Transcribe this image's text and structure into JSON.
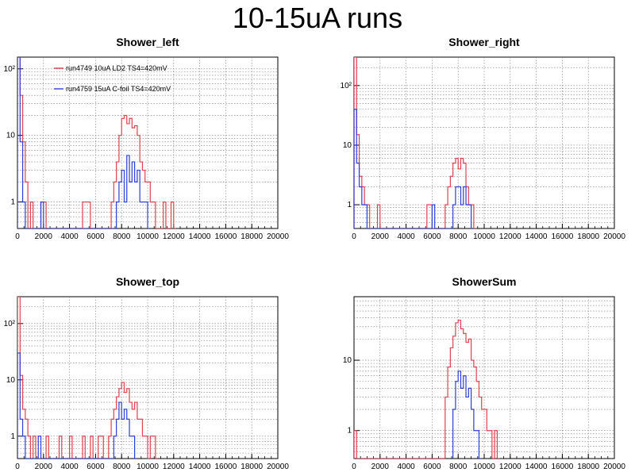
{
  "slide": {
    "title": "10-15uA runs"
  },
  "colors": {
    "red": "#e0414f",
    "blue": "#2b3fd6",
    "grid": "#7a7a7a",
    "axis": "#000000",
    "legend_line": "#000000"
  },
  "chart_data": [
    {
      "type": "histogram",
      "title": "Shower_left",
      "xlabel": "",
      "ylabel": "",
      "xlim": [
        0,
        20000
      ],
      "ylim": [
        0.4,
        150
      ],
      "yscale": "log",
      "xticks": [
        0,
        2000,
        4000,
        6000,
        8000,
        10000,
        12000,
        14000,
        16000,
        18000,
        20000
      ],
      "yticks": [
        {
          "value": 1,
          "label": "1"
        },
        {
          "value": 10,
          "label": "10"
        },
        {
          "value": 100,
          "label": "10²"
        }
      ],
      "grid": true,
      "legend": {
        "position": "top-left",
        "entries": [
          "run4749 10uA LD2 TS4=420mV",
          "run4759 15uA C-foil TS4=420mV"
        ]
      },
      "series": [
        {
          "name": "run4749 10uA LD2 TS4=420mV",
          "color": "#e0414f",
          "bins": [
            [
              0,
              150
            ],
            [
              200,
              40
            ],
            [
              400,
              8
            ],
            [
              600,
              2
            ],
            [
              800,
              0
            ],
            [
              1000,
              1
            ],
            [
              1200,
              0
            ],
            [
              1400,
              0
            ],
            [
              1600,
              0
            ],
            [
              1800,
              1
            ],
            [
              2000,
              1
            ],
            [
              2200,
              0
            ],
            [
              5000,
              1
            ],
            [
              5200,
              1
            ],
            [
              5400,
              1
            ],
            [
              5600,
              0
            ],
            [
              7200,
              1
            ],
            [
              7400,
              2
            ],
            [
              7600,
              4
            ],
            [
              7800,
              10
            ],
            [
              8000,
              18
            ],
            [
              8200,
              20
            ],
            [
              8400,
              15
            ],
            [
              8600,
              18
            ],
            [
              8800,
              13
            ],
            [
              9000,
              14
            ],
            [
              9200,
              10
            ],
            [
              9400,
              4
            ],
            [
              9600,
              3
            ],
            [
              9800,
              2
            ],
            [
              10000,
              2
            ],
            [
              10200,
              1
            ],
            [
              10400,
              1
            ],
            [
              10600,
              0
            ],
            [
              11200,
              1
            ],
            [
              11400,
              0
            ],
            [
              11800,
              1
            ],
            [
              12000,
              0
            ]
          ]
        },
        {
          "name": "run4759 15uA C-foil TS4=420mV",
          "color": "#2b3fd6",
          "bins": [
            [
              0,
              150
            ],
            [
              200,
              8
            ],
            [
              400,
              1
            ],
            [
              600,
              0
            ],
            [
              1800,
              1
            ],
            [
              2000,
              0
            ],
            [
              7600,
              1
            ],
            [
              7800,
              2
            ],
            [
              8000,
              3
            ],
            [
              8200,
              1
            ],
            [
              8400,
              5
            ],
            [
              8600,
              2
            ],
            [
              8800,
              4
            ],
            [
              9000,
              2
            ],
            [
              9200,
              3
            ],
            [
              9400,
              1
            ],
            [
              9600,
              1
            ],
            [
              9800,
              1
            ],
            [
              10000,
              0
            ]
          ]
        }
      ]
    },
    {
      "type": "histogram",
      "title": "Shower_right",
      "xlabel": "",
      "ylabel": "",
      "xlim": [
        0,
        20000
      ],
      "ylim": [
        0.4,
        300
      ],
      "yscale": "log",
      "xticks": [
        0,
        2000,
        4000,
        6000,
        8000,
        10000,
        12000,
        14000,
        16000,
        18000,
        20000
      ],
      "yticks": [
        {
          "value": 1,
          "label": "1"
        },
        {
          "value": 10,
          "label": "10"
        },
        {
          "value": 100,
          "label": "10²"
        }
      ],
      "grid": true,
      "series": [
        {
          "name": "",
          "color": "#e0414f",
          "bins": [
            [
              0,
              300
            ],
            [
              200,
              15
            ],
            [
              400,
              3
            ],
            [
              600,
              2
            ],
            [
              800,
              1
            ],
            [
              1000,
              1
            ],
            [
              1200,
              0
            ],
            [
              1800,
              1
            ],
            [
              2000,
              0
            ],
            [
              5600,
              1
            ],
            [
              5800,
              1
            ],
            [
              6000,
              0
            ],
            [
              7000,
              1
            ],
            [
              7200,
              2
            ],
            [
              7400,
              3
            ],
            [
              7600,
              5
            ],
            [
              7800,
              6
            ],
            [
              8000,
              4
            ],
            [
              8200,
              6
            ],
            [
              8400,
              5
            ],
            [
              8600,
              2
            ],
            [
              8800,
              1
            ],
            [
              9000,
              1
            ],
            [
              9200,
              0
            ]
          ]
        },
        {
          "name": "",
          "color": "#2b3fd6",
          "bins": [
            [
              0,
              40
            ],
            [
              200,
              5
            ],
            [
              400,
              2
            ],
            [
              600,
              1
            ],
            [
              800,
              1
            ],
            [
              1000,
              0
            ],
            [
              6000,
              1
            ],
            [
              6200,
              0
            ],
            [
              7600,
              1
            ],
            [
              7800,
              2
            ],
            [
              8000,
              2
            ],
            [
              8200,
              1
            ],
            [
              8400,
              2
            ],
            [
              8600,
              1
            ],
            [
              8800,
              1
            ],
            [
              9000,
              0
            ]
          ]
        }
      ]
    },
    {
      "type": "histogram",
      "title": "Shower_top",
      "xlabel": "",
      "ylabel": "",
      "xlim": [
        0,
        20000
      ],
      "ylim": [
        0.4,
        300
      ],
      "yscale": "log",
      "xticks": [
        0,
        2000,
        4000,
        6000,
        8000,
        10000,
        12000,
        14000,
        16000,
        18000,
        20000
      ],
      "yticks": [
        {
          "value": 1,
          "label": "1"
        },
        {
          "value": 10,
          "label": "10"
        },
        {
          "value": 100,
          "label": "10²"
        }
      ],
      "grid": true,
      "series": [
        {
          "name": "",
          "color": "#e0414f",
          "bins": [
            [
              0,
              300
            ],
            [
              200,
              12
            ],
            [
              400,
              3
            ],
            [
              600,
              2
            ],
            [
              800,
              1
            ],
            [
              1000,
              0
            ],
            [
              1200,
              1
            ],
            [
              1400,
              0
            ],
            [
              2200,
              1
            ],
            [
              2400,
              0
            ],
            [
              3200,
              1
            ],
            [
              3400,
              0
            ],
            [
              4000,
              1
            ],
            [
              4200,
              0
            ],
            [
              5000,
              1
            ],
            [
              5200,
              0
            ],
            [
              5600,
              1
            ],
            [
              5800,
              0
            ],
            [
              6200,
              1
            ],
            [
              6400,
              1
            ],
            [
              6600,
              0
            ],
            [
              7000,
              1
            ],
            [
              7200,
              2
            ],
            [
              7400,
              3
            ],
            [
              7600,
              5
            ],
            [
              7800,
              7
            ],
            [
              8000,
              9
            ],
            [
              8200,
              6
            ],
            [
              8400,
              7
            ],
            [
              8600,
              4
            ],
            [
              8800,
              3
            ],
            [
              9000,
              4
            ],
            [
              9200,
              2
            ],
            [
              9400,
              2
            ],
            [
              9600,
              1
            ],
            [
              9800,
              1
            ],
            [
              10000,
              0
            ],
            [
              10200,
              1
            ],
            [
              10400,
              1
            ],
            [
              10600,
              0
            ]
          ]
        },
        {
          "name": "",
          "color": "#2b3fd6",
          "bins": [
            [
              0,
              30
            ],
            [
              200,
              2
            ],
            [
              400,
              1
            ],
            [
              600,
              0
            ],
            [
              1600,
              1
            ],
            [
              1800,
              0
            ],
            [
              7400,
              1
            ],
            [
              7600,
              2
            ],
            [
              7800,
              4
            ],
            [
              8000,
              2
            ],
            [
              8200,
              3
            ],
            [
              8400,
              2
            ],
            [
              8600,
              1
            ],
            [
              8800,
              1
            ],
            [
              9000,
              0
            ]
          ]
        }
      ]
    },
    {
      "type": "histogram",
      "title": "ShowerSum",
      "xlabel": "",
      "ylabel": "",
      "xlim": [
        0,
        20000
      ],
      "ylim": [
        0.4,
        80
      ],
      "yscale": "log",
      "xticks": [
        0,
        2000,
        4000,
        6000,
        8000,
        10000,
        12000,
        14000,
        16000,
        18000,
        20000
      ],
      "yticks": [
        {
          "value": 1,
          "label": "1"
        },
        {
          "value": 10,
          "label": "10"
        }
      ],
      "grid": true,
      "series": [
        {
          "name": "",
          "color": "#e0414f",
          "bins": [
            [
              0,
              1
            ],
            [
              200,
              0
            ],
            [
              7000,
              3
            ],
            [
              7200,
              8
            ],
            [
              7400,
              15
            ],
            [
              7600,
              22
            ],
            [
              7800,
              34
            ],
            [
              8000,
              37
            ],
            [
              8200,
              28
            ],
            [
              8400,
              24
            ],
            [
              8600,
              18
            ],
            [
              8800,
              20
            ],
            [
              9000,
              10
            ],
            [
              9200,
              8
            ],
            [
              9400,
              5
            ],
            [
              9600,
              3
            ],
            [
              9800,
              2
            ],
            [
              10000,
              2
            ],
            [
              10200,
              1
            ],
            [
              10400,
              1
            ],
            [
              10600,
              0
            ],
            [
              10800,
              1
            ],
            [
              11000,
              0
            ]
          ]
        },
        {
          "name": "",
          "color": "#2b3fd6",
          "bins": [
            [
              7600,
              2
            ],
            [
              7800,
              5
            ],
            [
              8000,
              7
            ],
            [
              8200,
              4
            ],
            [
              8400,
              6
            ],
            [
              8600,
              3
            ],
            [
              8800,
              4
            ],
            [
              9000,
              2
            ],
            [
              9200,
              1
            ],
            [
              9400,
              1
            ],
            [
              9600,
              0
            ]
          ]
        }
      ]
    }
  ]
}
